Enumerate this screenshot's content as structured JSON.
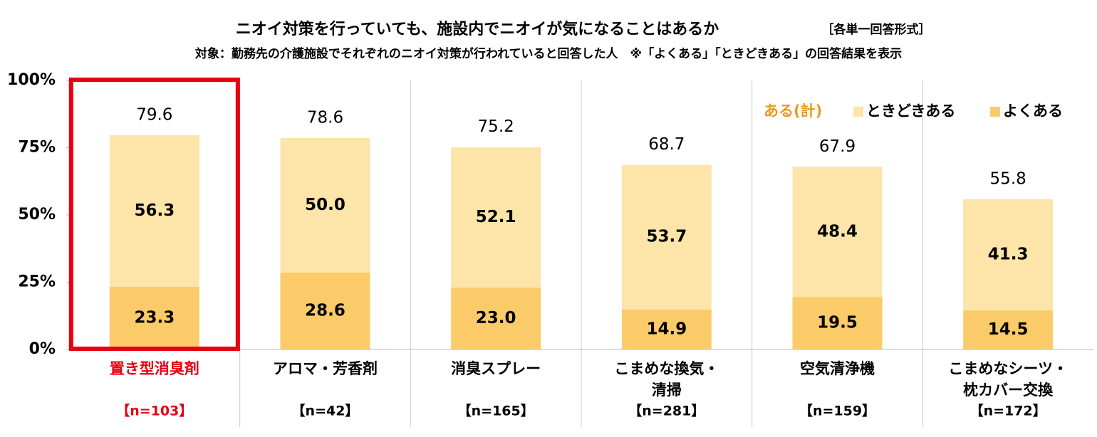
{
  "chart_data": {
    "type": "stacked_bar",
    "title": "ニオイ対策を行っていても、施設内でニオイが気になることはあるか",
    "title_note": "［各単一回答形式］",
    "subtitle": "対象：勤務先の介護施設でそれぞれのニオイ対策が行われていると回答した人　※「よくある」「ときどきある」の回答結果を表示",
    "categories": [
      [
        "置き型消臭剤"
      ],
      [
        "アロマ・芳香剤"
      ],
      [
        "消臭スプレー"
      ],
      [
        "こまめな換気・",
        "清掃"
      ],
      [
        "空気清浄機"
      ],
      [
        "こまめなシーツ・",
        "枕カバー交換"
      ]
    ],
    "sample_sizes": [
      "【n=103】",
      "【n=42】",
      "【n=165】",
      "【n=281】",
      "【n=159】",
      "【n=172】"
    ],
    "highlight": 0,
    "highlight_color": "#e60012",
    "series": [
      {
        "name": "よくある",
        "color": "#fbcb6a",
        "values": [
          23.3,
          28.6,
          23.0,
          14.9,
          19.5,
          14.5
        ],
        "value_labels": [
          "23.3",
          "28.6",
          "23.0",
          "14.9",
          "19.5",
          "14.5"
        ]
      },
      {
        "name": "ときどきある",
        "color": "#fde4a8",
        "values": [
          56.3,
          50.0,
          52.1,
          53.7,
          48.4,
          41.3
        ],
        "value_labels": [
          "56.3",
          "50.0",
          "52.1",
          "53.7",
          "48.4",
          "41.3"
        ]
      }
    ],
    "totals": {
      "name": "ある(計)",
      "color": "#eb9a1e",
      "values": [
        79.6,
        78.6,
        75.2,
        68.7,
        67.9,
        55.8
      ]
    },
    "ylim": [
      0,
      100
    ],
    "yticks": [
      {
        "value": 0,
        "label": "0%"
      },
      {
        "value": 25,
        "label": "25%"
      },
      {
        "value": 50,
        "label": "50%"
      },
      {
        "value": 75,
        "label": "75%"
      },
      {
        "value": 100,
        "label": "100%"
      }
    ],
    "legend": "top-right"
  }
}
